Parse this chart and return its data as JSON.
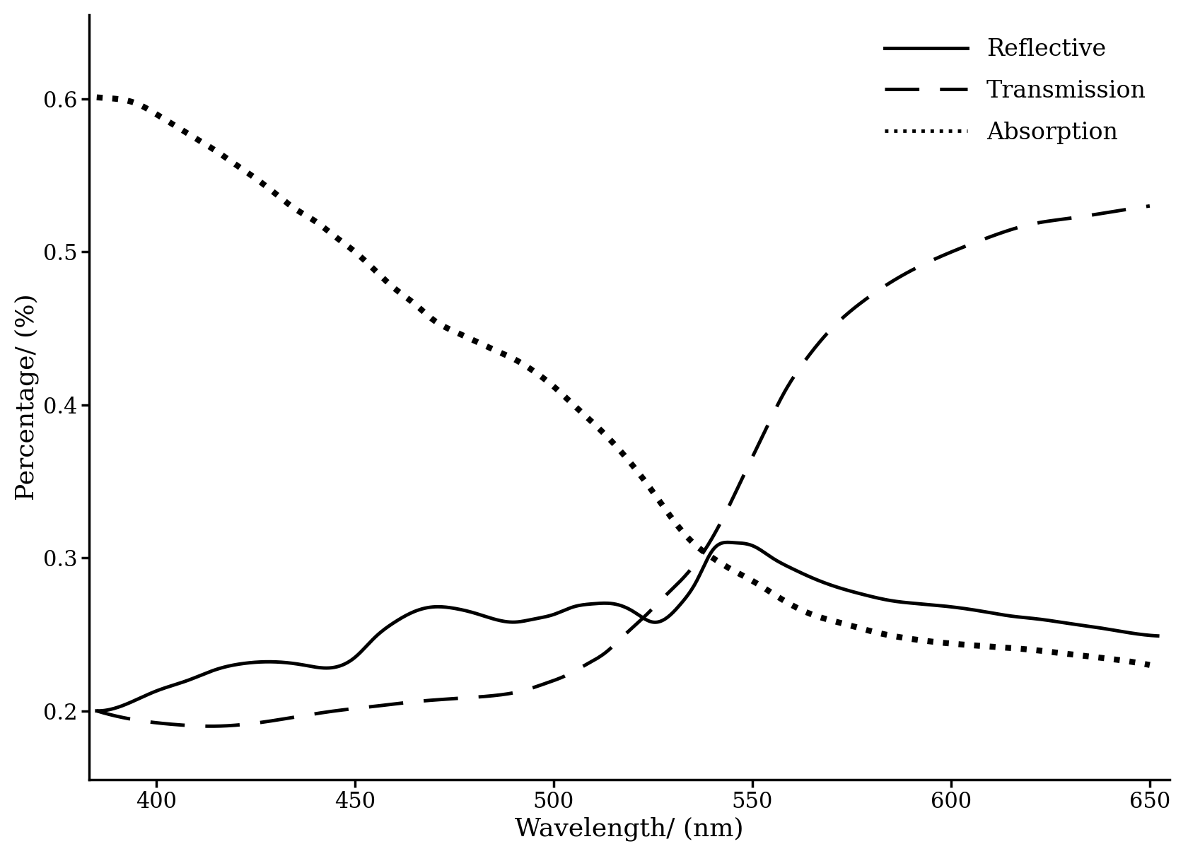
{
  "title": "",
  "xlabel": "Wavelength/ (nm)",
  "ylabel": "Percentage/ (%)",
  "xlim": [
    383,
    655
  ],
  "ylim": [
    0.155,
    0.655
  ],
  "xticks": [
    400,
    450,
    500,
    550,
    600,
    650
  ],
  "yticks": [
    0.2,
    0.3,
    0.4,
    0.5,
    0.6
  ],
  "background_color": "#ffffff",
  "line_color": "#000000",
  "reflective_x": [
    385,
    393,
    400,
    408,
    415,
    422,
    430,
    437,
    443,
    450,
    455,
    460,
    465,
    470,
    475,
    480,
    485,
    490,
    495,
    500,
    505,
    510,
    515,
    520,
    525,
    528,
    532,
    536,
    540,
    545,
    550,
    555,
    560,
    565,
    570,
    578,
    585,
    592,
    600,
    608,
    615,
    622,
    630,
    638,
    645,
    652
  ],
  "reflective_y": [
    0.2,
    0.205,
    0.213,
    0.22,
    0.227,
    0.231,
    0.232,
    0.23,
    0.228,
    0.235,
    0.248,
    0.258,
    0.265,
    0.268,
    0.267,
    0.264,
    0.26,
    0.258,
    0.26,
    0.263,
    0.268,
    0.27,
    0.27,
    0.265,
    0.258,
    0.26,
    0.27,
    0.285,
    0.305,
    0.31,
    0.308,
    0.3,
    0.293,
    0.287,
    0.282,
    0.276,
    0.272,
    0.27,
    0.268,
    0.265,
    0.262,
    0.26,
    0.257,
    0.254,
    0.251,
    0.249
  ],
  "transmission_x": [
    385,
    395,
    405,
    415,
    425,
    435,
    445,
    455,
    465,
    475,
    485,
    492,
    498,
    503,
    508,
    513,
    518,
    523,
    528,
    533,
    538,
    543,
    548,
    553,
    558,
    563,
    570,
    578,
    586,
    594,
    602,
    610,
    620,
    630,
    640,
    650
  ],
  "transmission_y": [
    0.2,
    0.194,
    0.191,
    0.19,
    0.192,
    0.196,
    0.2,
    0.203,
    0.206,
    0.208,
    0.21,
    0.213,
    0.218,
    0.223,
    0.23,
    0.238,
    0.25,
    0.262,
    0.275,
    0.288,
    0.305,
    0.328,
    0.355,
    0.382,
    0.408,
    0.428,
    0.45,
    0.468,
    0.482,
    0.493,
    0.502,
    0.51,
    0.518,
    0.522,
    0.526,
    0.53
  ],
  "absorption_x": [
    385,
    390,
    395,
    400,
    405,
    410,
    415,
    420,
    425,
    430,
    435,
    440,
    445,
    450,
    455,
    460,
    465,
    470,
    475,
    480,
    485,
    490,
    495,
    500,
    505,
    510,
    515,
    520,
    525,
    530,
    535,
    540,
    545,
    550,
    558,
    565,
    573,
    580,
    590,
    600,
    610,
    620,
    630,
    640,
    650
  ],
  "absorption_y": [
    0.601,
    0.6,
    0.597,
    0.59,
    0.582,
    0.574,
    0.566,
    0.557,
    0.548,
    0.538,
    0.528,
    0.52,
    0.51,
    0.5,
    0.488,
    0.476,
    0.466,
    0.455,
    0.448,
    0.442,
    0.436,
    0.43,
    0.422,
    0.412,
    0.4,
    0.388,
    0.375,
    0.36,
    0.343,
    0.325,
    0.31,
    0.3,
    0.292,
    0.285,
    0.272,
    0.263,
    0.257,
    0.252,
    0.247,
    0.244,
    0.242,
    0.24,
    0.237,
    0.234,
    0.23
  ],
  "legend_labels": [
    "Reflective",
    "Transmission",
    "Absorption"
  ],
  "legend_loc": "upper right",
  "tick_font_size": 22,
  "label_font_size": 26,
  "legend_font_size": 24,
  "line_width": 3.5,
  "dot_size": 6.0
}
